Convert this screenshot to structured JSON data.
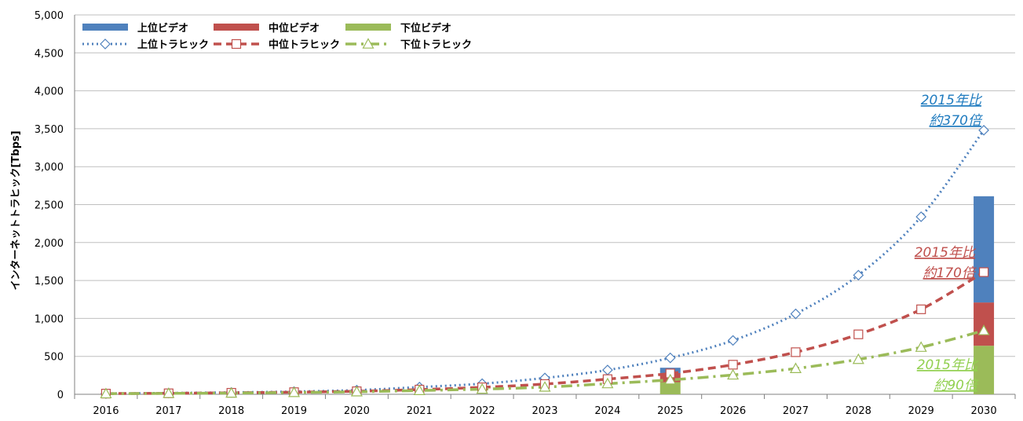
{
  "chart_data": {
    "type": "bar",
    "ylabel": "インターネットトラヒック[Tbps]",
    "xlabel": "",
    "ylim": [
      0,
      5000
    ],
    "yticks": [
      "0",
      "500",
      "1,000",
      "1,500",
      "2,000",
      "2,500",
      "3,000",
      "3,500",
      "4,000",
      "4,500",
      "5,000"
    ],
    "ytick_values": [
      0,
      500,
      1000,
      1500,
      2000,
      2500,
      3000,
      3500,
      4000,
      4500,
      5000
    ],
    "categories": [
      "2016",
      "2017",
      "2018",
      "2019",
      "2020",
      "2021",
      "2022",
      "2023",
      "2024",
      "2025",
      "2026",
      "2027",
      "2028",
      "2029",
      "2030"
    ],
    "grid": true,
    "legend_position": "top-left",
    "bar_series": [
      {
        "name": "上位ビデオ",
        "color": "#4f81bd",
        "values": [
          null,
          null,
          null,
          null,
          null,
          null,
          null,
          null,
          null,
          70,
          null,
          null,
          null,
          null,
          1400
        ]
      },
      {
        "name": "中位ビデオ",
        "color": "#c0504d",
        "values": [
          null,
          null,
          null,
          null,
          null,
          null,
          null,
          null,
          null,
          120,
          null,
          null,
          null,
          null,
          570
        ]
      },
      {
        "name": "下位ビデオ",
        "color": "#9bbb59",
        "values": [
          null,
          null,
          null,
          null,
          null,
          null,
          null,
          null,
          null,
          160,
          null,
          null,
          null,
          null,
          640
        ]
      }
    ],
    "line_series": [
      {
        "name": "上位トラヒック",
        "color": "#4f81bd",
        "marker": "diamond",
        "dash": "dot",
        "values": [
          10,
          17,
          25,
          36,
          55,
          95,
          140,
          215,
          320,
          480,
          710,
          1060,
          1570,
          2340,
          3480
        ]
      },
      {
        "name": "中位トラヒック",
        "color": "#c0504d",
        "marker": "square",
        "dash": "dash",
        "values": [
          9,
          13,
          20,
          28,
          40,
          62,
          92,
          135,
          200,
          275,
          390,
          555,
          790,
          1120,
          1610
        ]
      },
      {
        "name": "下位トラヒック",
        "color": "#9bbb59",
        "marker": "triangle",
        "dash": "dashdot",
        "values": [
          8,
          12,
          16,
          24,
          33,
          50,
          68,
          95,
          140,
          190,
          255,
          340,
          460,
          620,
          840
        ]
      }
    ],
    "annotations": [
      {
        "lines": [
          "2015年比",
          "約370倍"
        ],
        "color": "#1f7bbf"
      },
      {
        "lines": [
          "2015年比",
          "約170倍"
        ],
        "color": "#c0504d"
      },
      {
        "lines": [
          "2015年比",
          "約90倍"
        ],
        "color": "#92d050"
      }
    ]
  }
}
